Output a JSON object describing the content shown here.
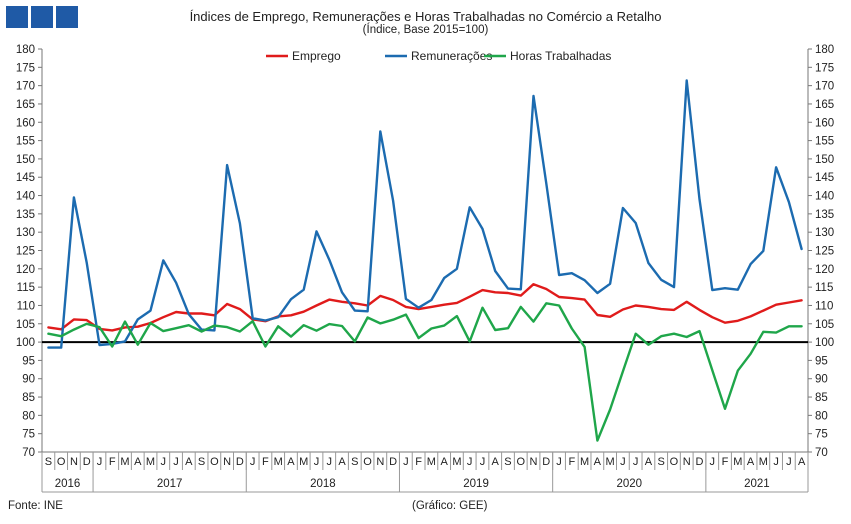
{
  "header": {
    "title": "Índices de Emprego, Remunerações e Horas Trabalhadas no Comércio a Retalho",
    "subtitle": "(Índice, Base 2015=100)"
  },
  "footer": {
    "source": "Fonte: INE",
    "credit": "(Gráfico: GEE)"
  },
  "colors": {
    "logo": "#1f5aa6",
    "emprego": "#e01b1b",
    "remuneracoes": "#1c6bb0",
    "horas": "#1fa64a",
    "baseline": "#000000"
  },
  "chart_data": {
    "type": "line",
    "title": "Índices de Emprego, Remunerações e Horas Trabalhadas no Comércio a Retalho",
    "subtitle": "(Índice, Base 2015=100)",
    "ylim": [
      70,
      180
    ],
    "yticks": [
      70,
      75,
      80,
      85,
      90,
      95,
      100,
      105,
      110,
      115,
      120,
      125,
      130,
      135,
      140,
      145,
      150,
      155,
      160,
      165,
      170,
      175,
      180
    ],
    "grid": false,
    "legend_position": "top",
    "reference_line": 100,
    "x": [
      "S",
      "O",
      "N",
      "D",
      "J",
      "F",
      "M",
      "A",
      "M",
      "J",
      "J",
      "A",
      "S",
      "O",
      "N",
      "D",
      "J",
      "F",
      "M",
      "A",
      "M",
      "J",
      "J",
      "A",
      "S",
      "O",
      "N",
      "D",
      "J",
      "F",
      "M",
      "A",
      "M",
      "J",
      "J",
      "A",
      "S",
      "O",
      "N",
      "D",
      "J",
      "F",
      "M",
      "A",
      "M",
      "J",
      "J",
      "A",
      "S",
      "O",
      "N",
      "D",
      "J",
      "F",
      "M",
      "A",
      "M",
      "J",
      "J",
      "A"
    ],
    "year_groups": [
      {
        "label": "2016",
        "start": 0,
        "count": 4
      },
      {
        "label": "2017",
        "start": 4,
        "count": 12
      },
      {
        "label": "2018",
        "start": 16,
        "count": 12
      },
      {
        "label": "2019",
        "start": 28,
        "count": 12
      },
      {
        "label": "2020",
        "start": 40,
        "count": 12
      },
      {
        "label": "2021",
        "start": 52,
        "count": 8
      }
    ],
    "series": [
      {
        "name": "Emprego",
        "color": "#e01b1b",
        "values": [
          104.0,
          103.5,
          106.2,
          106.0,
          103.6,
          103.2,
          104.0,
          104.2,
          105.2,
          106.8,
          108.2,
          107.8,
          107.8,
          107.3,
          110.4,
          109.0,
          106.2,
          105.7,
          107.0,
          107.3,
          108.3,
          110.0,
          111.6,
          111.0,
          110.6,
          110.0,
          112.6,
          111.5,
          109.6,
          109.0,
          109.6,
          110.2,
          110.7,
          112.4,
          114.2,
          113.6,
          113.4,
          112.7,
          115.8,
          114.5,
          112.3,
          112.0,
          111.6,
          107.4,
          106.9,
          108.9,
          110.0,
          109.6,
          109.0,
          108.8,
          111.0,
          108.8,
          106.8,
          105.3,
          105.8,
          107.0,
          108.6,
          110.2,
          110.8,
          111.4
        ]
      },
      {
        "name": "Remunerações",
        "color": "#1c6bb0",
        "values": [
          98.5,
          98.5,
          139.5,
          121.7,
          99.2,
          99.5,
          100.2,
          106.2,
          108.6,
          122.3,
          116.2,
          107.6,
          103.4,
          103.2,
          148.3,
          132.4,
          106.5,
          105.9,
          106.8,
          111.7,
          114.3,
          130.2,
          122.5,
          113.6,
          108.6,
          108.4,
          157.5,
          138.6,
          111.8,
          109.4,
          111.5,
          117.5,
          120.0,
          136.8,
          130.9,
          119.4,
          114.6,
          114.4,
          167.2,
          143.3,
          118.3,
          118.8,
          116.9,
          113.4,
          115.9,
          136.6,
          132.5,
          121.6,
          117.0,
          115.0,
          171.4,
          139.0,
          114.2,
          114.7,
          114.3,
          121.3,
          124.9,
          147.7,
          138.2,
          125.4
        ]
      },
      {
        "name": "Horas Trabalhadas",
        "color": "#1fa64a",
        "values": [
          102.3,
          101.6,
          103.4,
          105.0,
          104.1,
          98.8,
          105.6,
          99.3,
          105.2,
          103.0,
          103.8,
          104.6,
          102.9,
          104.5,
          104.1,
          102.9,
          105.7,
          98.8,
          104.3,
          101.5,
          104.6,
          103.1,
          104.9,
          104.4,
          100.2,
          106.7,
          105.1,
          106.1,
          107.5,
          101.1,
          103.7,
          104.5,
          107.1,
          100.2,
          109.4,
          103.3,
          103.8,
          109.6,
          105.6,
          110.6,
          110.0,
          103.7,
          98.7,
          73.1,
          81.6,
          92.0,
          102.3,
          99.3,
          101.6,
          102.3,
          101.4,
          103.0,
          92.3,
          81.8,
          92.2,
          96.8,
          102.8,
          102.6,
          104.3,
          104.3
        ]
      }
    ]
  }
}
